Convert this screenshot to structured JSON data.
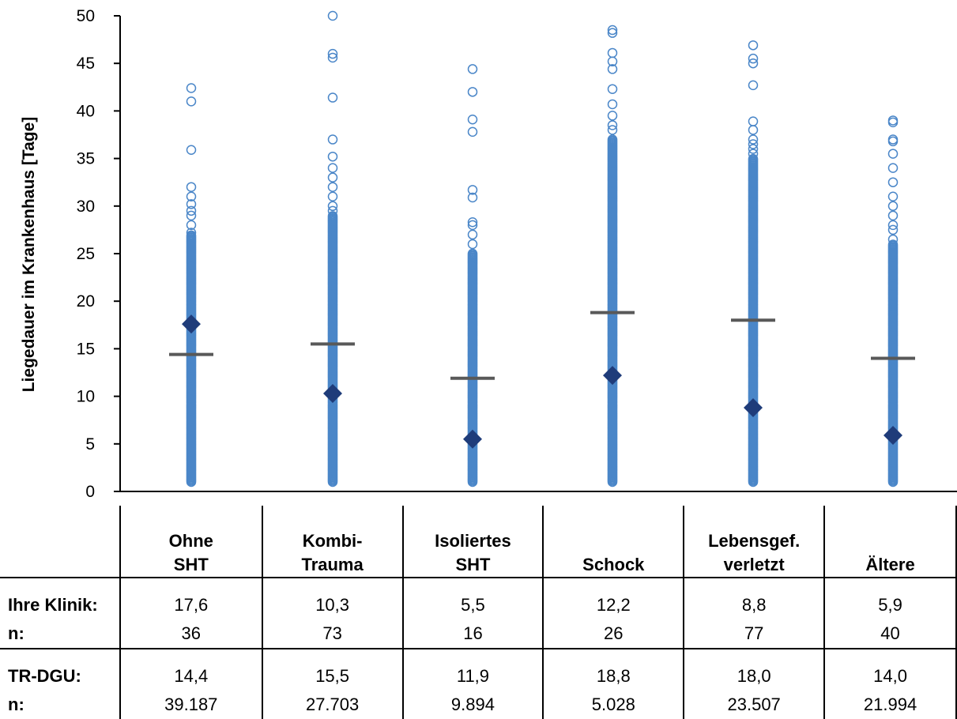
{
  "chart_data": {
    "type": "scatter",
    "title": "",
    "xlabel": "",
    "ylabel": "Liegedauer im Krankenhaus [Tage]",
    "ylim": [
      0,
      50
    ],
    "yticks": [
      0,
      5,
      10,
      15,
      20,
      25,
      30,
      35,
      40,
      45,
      50
    ],
    "categories": [
      {
        "line1": "Ohne",
        "line2": "SHT"
      },
      {
        "line1": "Kombi-",
        "line2": "Trauma"
      },
      {
        "line1": "Isoliertes",
        "line2": "SHT"
      },
      {
        "line1": "",
        "line2": "Schock"
      },
      {
        "line1": "Lebensgef.",
        "line2": "verletzt"
      },
      {
        "line1": "",
        "line2": "Ältere"
      }
    ],
    "series": [
      {
        "name": "Ihre Klinik",
        "marker": "diamond",
        "color": "#1f3c7a",
        "values": [
          17.6,
          10.3,
          5.5,
          12.2,
          8.8,
          5.9
        ]
      },
      {
        "name": "TR-DGU",
        "marker": "bar",
        "color": "#595959",
        "values": [
          14.4,
          15.5,
          11.9,
          18.8,
          18.0,
          14.0
        ]
      }
    ],
    "distribution": {
      "color": "#4a86c8",
      "dense_to": [
        27,
        29,
        25,
        37,
        35,
        26
      ],
      "outliers": [
        [
          27.2,
          28.0,
          29.0,
          29.5,
          30.2,
          31.0,
          32.0,
          35.9,
          41.0,
          42.4
        ],
        [
          29.5,
          30.0,
          31.0,
          32.0,
          33.0,
          34.0,
          35.2,
          37.0,
          41.4,
          45.6,
          46.0,
          50.0
        ],
        [
          25.0,
          26.0,
          27.0,
          28.0,
          28.3,
          30.9,
          31.7,
          37.8,
          39.1,
          42.0,
          44.4
        ],
        [
          38.0,
          38.5,
          39.5,
          40.7,
          42.3,
          44.4,
          45.2,
          46.1,
          48.2,
          48.5
        ],
        [
          35.5,
          36.0,
          36.5,
          37.0,
          38.0,
          38.9,
          42.7,
          45.0,
          45.5,
          46.9
        ],
        [
          26.5,
          27.5,
          28.0,
          29.0,
          30.0,
          31.0,
          32.5,
          34.0,
          35.5,
          36.8,
          37.0,
          38.8,
          39.0
        ]
      ],
      "min": 1.0
    }
  },
  "table": {
    "rows": [
      {
        "label1": "Ihre Klinik:",
        "label2": "n:",
        "values": [
          [
            "17,6",
            "36"
          ],
          [
            "10,3",
            "73"
          ],
          [
            "5,5",
            "16"
          ],
          [
            "12,2",
            "26"
          ],
          [
            "8,8",
            "77"
          ],
          [
            "5,9",
            "40"
          ]
        ]
      },
      {
        "label1": "TR-DGU:",
        "label2": "n:",
        "values": [
          [
            "14,4",
            "39.187"
          ],
          [
            "15,5",
            "27.703"
          ],
          [
            "11,9",
            "9.894"
          ],
          [
            "18,8",
            "5.028"
          ],
          [
            "18,0",
            "23.507"
          ],
          [
            "14,0",
            "21.994"
          ]
        ]
      }
    ]
  }
}
